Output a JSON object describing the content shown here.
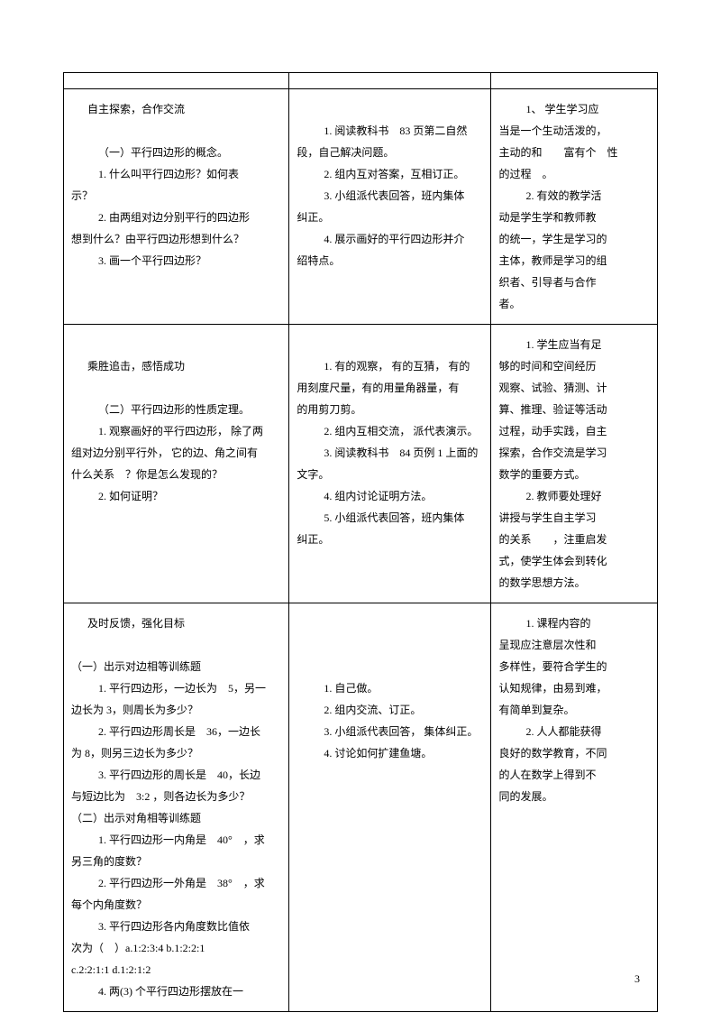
{
  "row1": {
    "c1_title": "自主探索，合作交流",
    "c1_sub": "（一）平行四边形的概念。",
    "c1_q1a": "1. 什么叫平行四边形？如何表",
    "c1_q1b": "示？",
    "c1_q2a": "2. 由两组对边分别平行的四边形",
    "c1_q2b": "想到什么？由平行四边形想到什么？",
    "c1_q3": "3. 画一个平行四边形？",
    "c2_l1a": "1. 阅读教科书　83 页第二自然",
    "c2_l1b": "段，自己解决问题。",
    "c2_l2": "2. 组内互对答案，互相订正。",
    "c2_l3a": "3. 小组派代表回答，班内集体",
    "c2_l3b": "纠正。",
    "c2_l4a": "4. 展示画好的平行四边形并介",
    "c2_l4b": "绍特点。",
    "c3_l1a": "1、 学生学习应",
    "c3_l1b": "当是一个生动活泼的，",
    "c3_l1c_pre": "主动的和",
    "c3_l1c_mid": "富有个",
    "c3_l1c_end": "性",
    "c3_l1d_pre": "的过程",
    "c3_l1d_end": "。",
    "c3_l2a": "2. 有效的教学活",
    "c3_l2b": "动是学生学和教师教",
    "c3_l2c": "的统一，学生是学习的",
    "c3_l2d": "主体，教师是学习的组",
    "c3_l2e": "织者、引导者与合作",
    "c3_l2f": "者。"
  },
  "row2": {
    "c1_title": "乘胜追击，感悟成功",
    "c1_sub": "（二）平行四边形的性质定理。",
    "c1_q1a": "1. 观察画好的平行四边形， 除了两",
    "c1_q1b": "组对边分别平行外， 它的边、角之间有",
    "c1_q1c_pre": "什么关系",
    "c1_q1c_end": "？你是怎么发现的？",
    "c1_q2": "2. 如何证明？",
    "c2_l1a": "1. 有的观察， 有的互猜， 有的",
    "c2_l1b": "用刻度尺量，有的用量角器量，有",
    "c2_l1c": "的用剪刀剪。",
    "c2_l2": "2. 组内互相交流， 派代表演示。",
    "c2_l3a": "3. 阅读教科书　84 页例 1 上面的",
    "c2_l3b": "文字。",
    "c2_l4": "4. 组内讨论证明方法。",
    "c2_l5a": "5. 小组派代表回答，班内集体",
    "c2_l5b": "纠正。",
    "c3_l1a": "1. 学生应当有足",
    "c3_l1b": "够的时间和空间经历",
    "c3_l1c": "观察、试验、猜测、计",
    "c3_l1d": "算、推理、验证等活动",
    "c3_l1e": "过程，动手实践，自主",
    "c3_l1f": "探索，合作交流是学习",
    "c3_l1g": "数学的重要方式。",
    "c3_l2a": "2. 教师要处理好",
    "c3_l2b": "讲授与学生自主学习",
    "c3_l2c_pre": "的关系",
    "c3_l2c_end": "，注重启发",
    "c3_l2d": "式，使学生体会到转化",
    "c3_l2e": "的数学思想方法。"
  },
  "row3": {
    "c1_title": "及时反馈，强化目标",
    "c1_sub1": "（一）出示对边相等训练题",
    "c1_e1a": "1. 平行四边形，一边长为　5，另一",
    "c1_e1b": "边长为 3，则周长为多少？",
    "c1_e2a": "2. 平行四边形周长是　36，一边长",
    "c1_e2b": "为 8，则另三边长为多少？",
    "c1_e3a": "3. 平行四边形的周长是　40，长边",
    "c1_e3b": "与短边比为　3:2 ，则各边长为多少？",
    "c1_sub2": "（二）出示对角相等训练题",
    "c1_e4a": "1. 平行四边形一内角是　40°　，求",
    "c1_e4b": "另三角的度数？",
    "c1_e5a": "2. 平行四边形一外角是　38°　，求",
    "c1_e5b": "每个内角度数？",
    "c1_e6a": "3. 平行四边形各内角度数比值依",
    "c1_e6b": "次为（　）a.1:2:3:4 b.1:2:2:1",
    "c1_e6c": "c.2:2:1:1 d.1:2:1:2",
    "c1_e7": "4. 两(3) 个平行四边形摆放在一",
    "c2_l1": "1. 自己做。",
    "c2_l2": "2. 组内交流、订正。",
    "c2_l3": "3. 小组派代表回答， 集体纠正。",
    "c2_l4": "4. 讨论如何扩建鱼塘。",
    "c3_l1a": "1. 课程内容的",
    "c3_l1b": "呈现应注意层次性和",
    "c3_l1c": "多样性，要符合学生的",
    "c3_l1d": "认知规律，由易到难，",
    "c3_l1e": "有简单到复杂。",
    "c3_l2a": "2. 人人都能获得",
    "c3_l2b": "良好的数学教育，不同",
    "c3_l2c": "的人在数学上得到不",
    "c3_l2d": "同的发展。"
  },
  "pagenum": "3"
}
